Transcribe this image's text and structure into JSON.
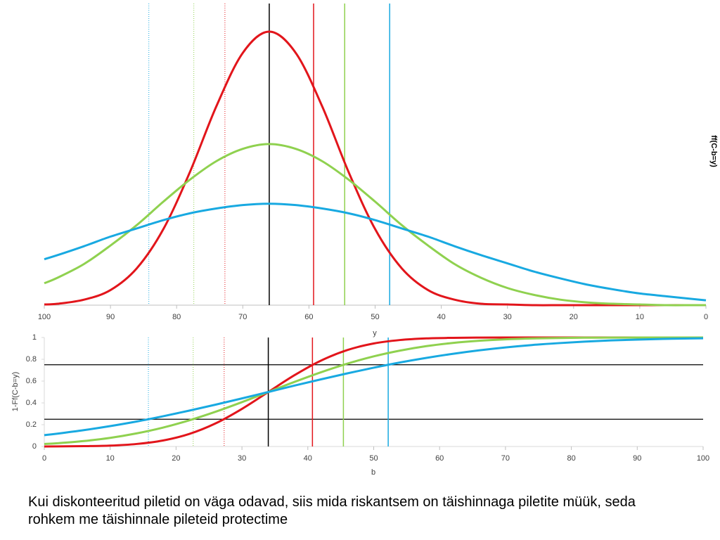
{
  "chart_data": [
    {
      "type": "line",
      "x_label": "y",
      "y_label": "ff(C-b=y)",
      "x": [
        0,
        2,
        6,
        10,
        14,
        18,
        22,
        26,
        30,
        34,
        38,
        42,
        46,
        50,
        54,
        58,
        62,
        66,
        70,
        74,
        78,
        82,
        86,
        90,
        94,
        98,
        100
      ],
      "series": [
        {
          "color": "#e2151b",
          "values": [
            0,
            0,
            0,
            0,
            0,
            0,
            0,
            0,
            0.0001,
            0.0002,
            0.0008,
            0.0022,
            0.0054,
            0.0111,
            0.0194,
            0.029,
            0.0368,
            0.0399,
            0.0368,
            0.029,
            0.0194,
            0.0111,
            0.0054,
            0.0022,
            0.0008,
            0.0002,
            0.0001
          ]
        },
        {
          "color": "#8fd14f",
          "values": [
            0,
            0,
            0,
            0.0001,
            0.0002,
            0.0004,
            0.0008,
            0.0015,
            0.0025,
            0.004,
            0.006,
            0.0087,
            0.0117,
            0.0151,
            0.0183,
            0.021,
            0.0228,
            0.0235,
            0.0228,
            0.021,
            0.0183,
            0.0151,
            0.0117,
            0.0087,
            0.006,
            0.004,
            0.0032
          ]
        },
        {
          "color": "#18a9e1",
          "values": [
            0.0007,
            0.0009,
            0.0013,
            0.0017,
            0.0023,
            0.003,
            0.0039,
            0.0049,
            0.0061,
            0.0073,
            0.0086,
            0.01,
            0.0112,
            0.0124,
            0.0134,
            0.0141,
            0.0146,
            0.0148,
            0.0146,
            0.0141,
            0.0134,
            0.0124,
            0.0112,
            0.01,
            0.0086,
            0.0073,
            0.0067
          ]
        }
      ],
      "xlim": [
        100,
        0
      ],
      "xticks": [
        100,
        90,
        80,
        70,
        60,
        50,
        40,
        30,
        20,
        10,
        0
      ],
      "ylim": [
        0,
        0.044
      ],
      "vlines": [
        {
          "value": 84.2,
          "color": "#18a9e1",
          "dotted": true
        },
        {
          "value": 77.4,
          "color": "#8fd14f",
          "dotted": true
        },
        {
          "value": 72.7,
          "color": "#e2151b",
          "dotted": true
        },
        {
          "value": 66,
          "color": "#000000",
          "dotted": false
        },
        {
          "value": 59.3,
          "color": "#e2151b",
          "dotted": false
        },
        {
          "value": 54.6,
          "color": "#8fd14f",
          "dotted": false
        },
        {
          "value": 47.8,
          "color": "#18a9e1",
          "dotted": false
        }
      ]
    },
    {
      "type": "line",
      "x_label": "b",
      "y_label": "1-Ff(C-b=y)",
      "x": [
        0,
        2,
        6,
        10,
        14,
        18,
        22,
        26,
        30,
        34,
        38,
        42,
        46,
        50,
        54,
        58,
        62,
        66,
        70,
        74,
        78,
        82,
        86,
        90,
        94,
        98,
        100
      ],
      "series": [
        {
          "color": "#e2151b",
          "values": [
            0,
            0.001,
            0.003,
            0.008,
            0.023,
            0.055,
            0.115,
            0.212,
            0.345,
            0.5,
            0.655,
            0.788,
            0.885,
            0.945,
            0.977,
            0.992,
            0.997,
            0.999,
            1,
            1,
            1,
            1,
            1,
            1,
            1,
            1,
            1
          ]
        },
        {
          "color": "#8fd14f",
          "values": [
            0.023,
            0.03,
            0.05,
            0.079,
            0.12,
            0.173,
            0.24,
            0.319,
            0.407,
            0.5,
            0.593,
            0.681,
            0.76,
            0.827,
            0.88,
            0.921,
            0.95,
            0.97,
            0.983,
            0.991,
            0.995,
            0.998,
            0.999,
            1,
            1,
            1,
            1
          ]
        },
        {
          "color": "#18a9e1",
          "values": [
            0.104,
            0.118,
            0.15,
            0.187,
            0.229,
            0.277,
            0.329,
            0.384,
            0.441,
            0.5,
            0.559,
            0.616,
            0.671,
            0.723,
            0.771,
            0.813,
            0.85,
            0.882,
            0.909,
            0.931,
            0.948,
            0.962,
            0.973,
            0.981,
            0.987,
            0.991,
            0.993
          ]
        }
      ],
      "xlim": [
        0,
        100
      ],
      "xticks": [
        0,
        10,
        20,
        30,
        40,
        50,
        60,
        70,
        80,
        90,
        100
      ],
      "ylim": [
        0,
        1
      ],
      "yticks": [
        0,
        0.2,
        0.4,
        0.6,
        0.8,
        1
      ],
      "hlines": [
        0.25,
        0.75
      ],
      "vlines": [
        {
          "value": 15.8,
          "color": "#18a9e1",
          "dotted": true
        },
        {
          "value": 22.6,
          "color": "#8fd14f",
          "dotted": true
        },
        {
          "value": 27.3,
          "color": "#e2151b",
          "dotted": true
        },
        {
          "value": 34,
          "color": "#000000",
          "dotted": false
        },
        {
          "value": 40.7,
          "color": "#e2151b",
          "dotted": false
        },
        {
          "value": 45.4,
          "color": "#8fd14f",
          "dotted": false
        },
        {
          "value": 52.2,
          "color": "#18a9e1",
          "dotted": false
        }
      ]
    }
  ],
  "caption": "Kui diskonteeritud piletid on väga odavad, siis mida riskantsem on täishinnaga piletite müük, seda rohkem me täishinnale pileteid protectime"
}
